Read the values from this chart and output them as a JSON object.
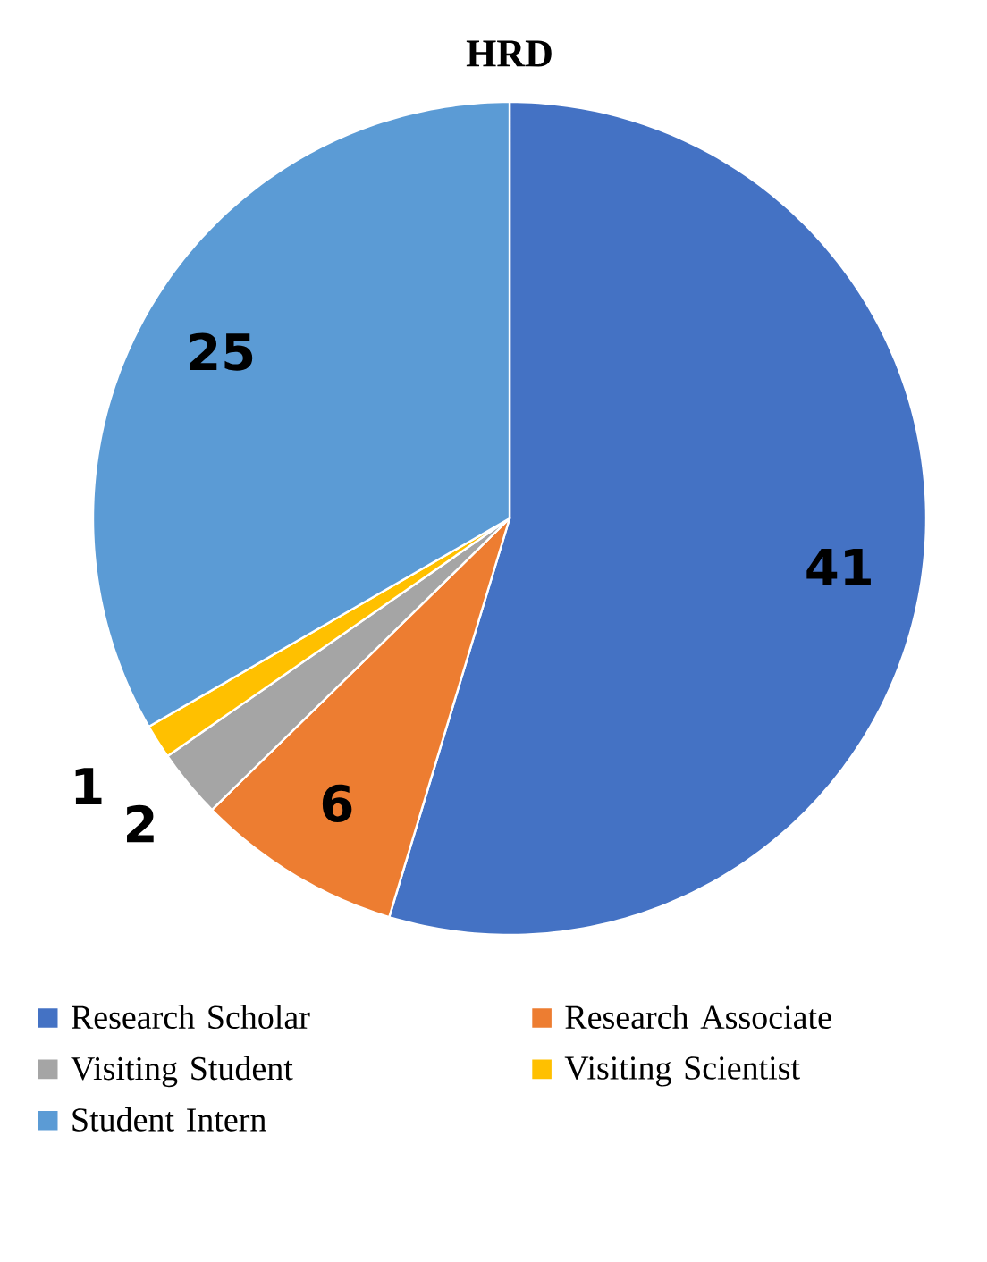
{
  "chart_data": {
    "type": "pie",
    "title": "HRD",
    "categories": [
      "Research Scholar",
      "Research Associate",
      "Visiting Student",
      "Visiting Scientist",
      "Student Intern"
    ],
    "values": [
      41,
      6,
      2,
      1,
      25
    ],
    "colors": [
      "#4472c4",
      "#ed7d31",
      "#a5a5a5",
      "#ffc000",
      "#5b9bd5"
    ],
    "data_labels": true,
    "legend": "bottom"
  }
}
